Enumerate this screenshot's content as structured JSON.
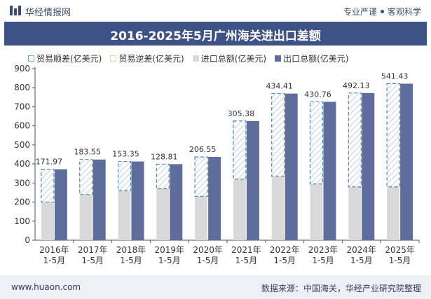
{
  "header": {
    "brand": "华经情报网",
    "slogan_left": "专业严谨",
    "slogan_right": "客观科学",
    "title": "2016-2025年5月广州海关进出口差额"
  },
  "footer": {
    "site": "www.huaon.com",
    "source": "数据来源：中国海关，华经产业研究院整理"
  },
  "colors": {
    "export": "#5e6d9c",
    "import": "#d9d9d9",
    "surplus_border": "#4a8ea5",
    "deficit_border": "#e6c35a",
    "title_bg": "#3e5288"
  },
  "chart_data": {
    "type": "bar",
    "title": "2016-2025年5月广州海关进出口差额",
    "categories": [
      "2016年\n1-5月",
      "2017年\n1-5月",
      "2018年\n1-5月",
      "2019年\n1-5月",
      "2020年\n1-5月",
      "2021年\n1-5月",
      "2022年\n1-5月",
      "2023年\n1-5月",
      "2024年\n1-5月",
      "2025年\n1-5月"
    ],
    "legend": [
      "贸易顺差(亿美元)",
      "贸易逆差(亿美元)",
      "进口总额(亿美元)",
      "出口总额(亿美元)"
    ],
    "series": [
      {
        "name": "贸易顺差(亿美元)",
        "values": [
          171.97,
          183.55,
          153.35,
          128.81,
          206.55,
          305.38,
          434.41,
          430.76,
          492.13,
          541.43
        ]
      },
      {
        "name": "贸易逆差(亿美元)",
        "values": [
          0,
          0,
          0,
          0,
          0,
          0,
          0,
          0,
          0,
          0
        ]
      },
      {
        "name": "进口总额(亿美元)",
        "values": [
          200,
          240,
          260,
          270,
          230,
          320,
          335,
          295,
          280,
          280
        ]
      },
      {
        "name": "出口总额(亿美元)",
        "values": [
          372,
          423,
          413,
          399,
          437,
          625,
          769,
          726,
          772,
          821
        ]
      }
    ],
    "ylim": [
      0,
      900
    ],
    "yticks": [
      0,
      100,
      200,
      300,
      400,
      500,
      600,
      700,
      800,
      900
    ],
    "xlabel": "",
    "ylabel": ""
  }
}
